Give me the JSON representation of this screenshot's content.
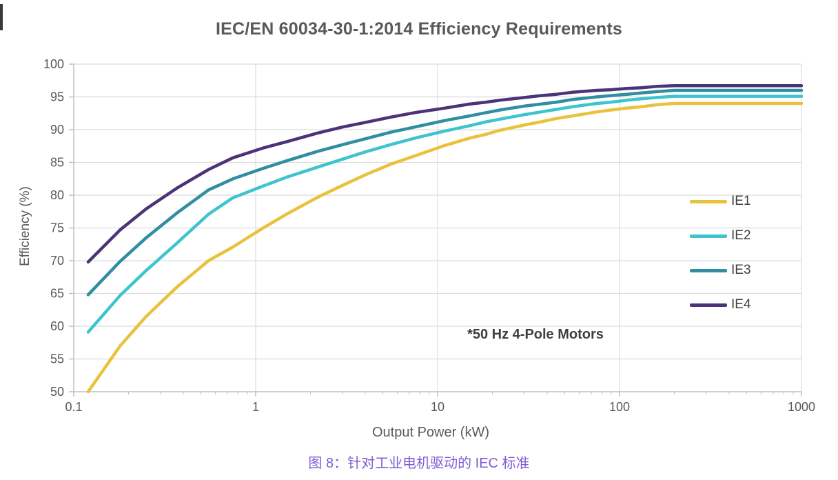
{
  "page": {
    "background": "#ffffff",
    "caption": "图 8：针对工业电机驱动的 IEC 标准",
    "caption_color": "#7E5CD5"
  },
  "chart_data": {
    "type": "line",
    "title": "IEC/EN 60034-30-1:2014 Efficiency Requirements",
    "xlabel": "Output Power (kW)",
    "ylabel": "Efficiency (%)",
    "annotation": "*50 Hz 4-Pole Motors",
    "x_scale": "log",
    "xlim": [
      0.1,
      1000
    ],
    "ylim": [
      50,
      100
    ],
    "x_ticks": [
      0.1,
      1,
      10,
      100,
      1000
    ],
    "x_tick_labels": [
      "0.1",
      "1",
      "10",
      "100",
      "1000"
    ],
    "y_ticks": [
      50,
      55,
      60,
      65,
      70,
      75,
      80,
      85,
      90,
      95,
      100
    ],
    "grid": true,
    "legend_position": "right-inside",
    "x": [
      0.12,
      0.18,
      0.25,
      0.37,
      0.55,
      0.75,
      1.1,
      1.5,
      2.2,
      3,
      4,
      5.5,
      7.5,
      11,
      15,
      18.5,
      22,
      30,
      37,
      45,
      55,
      75,
      90,
      110,
      132,
      160,
      200,
      315,
      500,
      1000
    ],
    "series": [
      {
        "name": "IE1",
        "color": "#E9C23D",
        "values": [
          50.0,
          57.0,
          61.5,
          66.0,
          70.0,
          72.1,
          75.0,
          77.2,
          79.7,
          81.5,
          83.1,
          84.7,
          86.0,
          87.6,
          88.7,
          89.3,
          89.9,
          90.7,
          91.2,
          91.7,
          92.1,
          92.7,
          93.0,
          93.3,
          93.5,
          93.8,
          94.0,
          94.0,
          94.0,
          94.0
        ]
      },
      {
        "name": "IE2",
        "color": "#3FC4CE",
        "values": [
          59.1,
          64.7,
          68.5,
          72.7,
          77.1,
          79.6,
          81.4,
          82.8,
          84.3,
          85.5,
          86.6,
          87.7,
          88.7,
          89.8,
          90.6,
          91.2,
          91.6,
          92.3,
          92.7,
          93.1,
          93.5,
          94.0,
          94.2,
          94.5,
          94.7,
          94.9,
          95.1,
          95.1,
          95.1,
          95.1
        ]
      },
      {
        "name": "IE3",
        "color": "#2F8FA1",
        "values": [
          64.8,
          69.9,
          73.5,
          77.3,
          80.8,
          82.5,
          84.1,
          85.3,
          86.7,
          87.7,
          88.6,
          89.6,
          90.4,
          91.4,
          92.1,
          92.6,
          93.0,
          93.6,
          93.9,
          94.2,
          94.6,
          95.0,
          95.2,
          95.4,
          95.6,
          95.8,
          96.0,
          96.0,
          96.0,
          96.0
        ]
      },
      {
        "name": "IE4",
        "color": "#4B3377",
        "values": [
          69.8,
          74.7,
          77.9,
          81.1,
          83.9,
          85.7,
          87.2,
          88.2,
          89.5,
          90.4,
          91.1,
          91.9,
          92.6,
          93.3,
          93.9,
          94.2,
          94.5,
          94.9,
          95.2,
          95.4,
          95.7,
          96.0,
          96.1,
          96.3,
          96.4,
          96.6,
          96.7,
          96.7,
          96.7,
          96.7
        ]
      }
    ],
    "colors": {
      "grid": "#DCDCDC",
      "axis": "#BFBFBF",
      "tick_label": "#595959",
      "title": "#595959",
      "legend_text": "#404040",
      "annotation_text": "#3F3F3F"
    }
  }
}
